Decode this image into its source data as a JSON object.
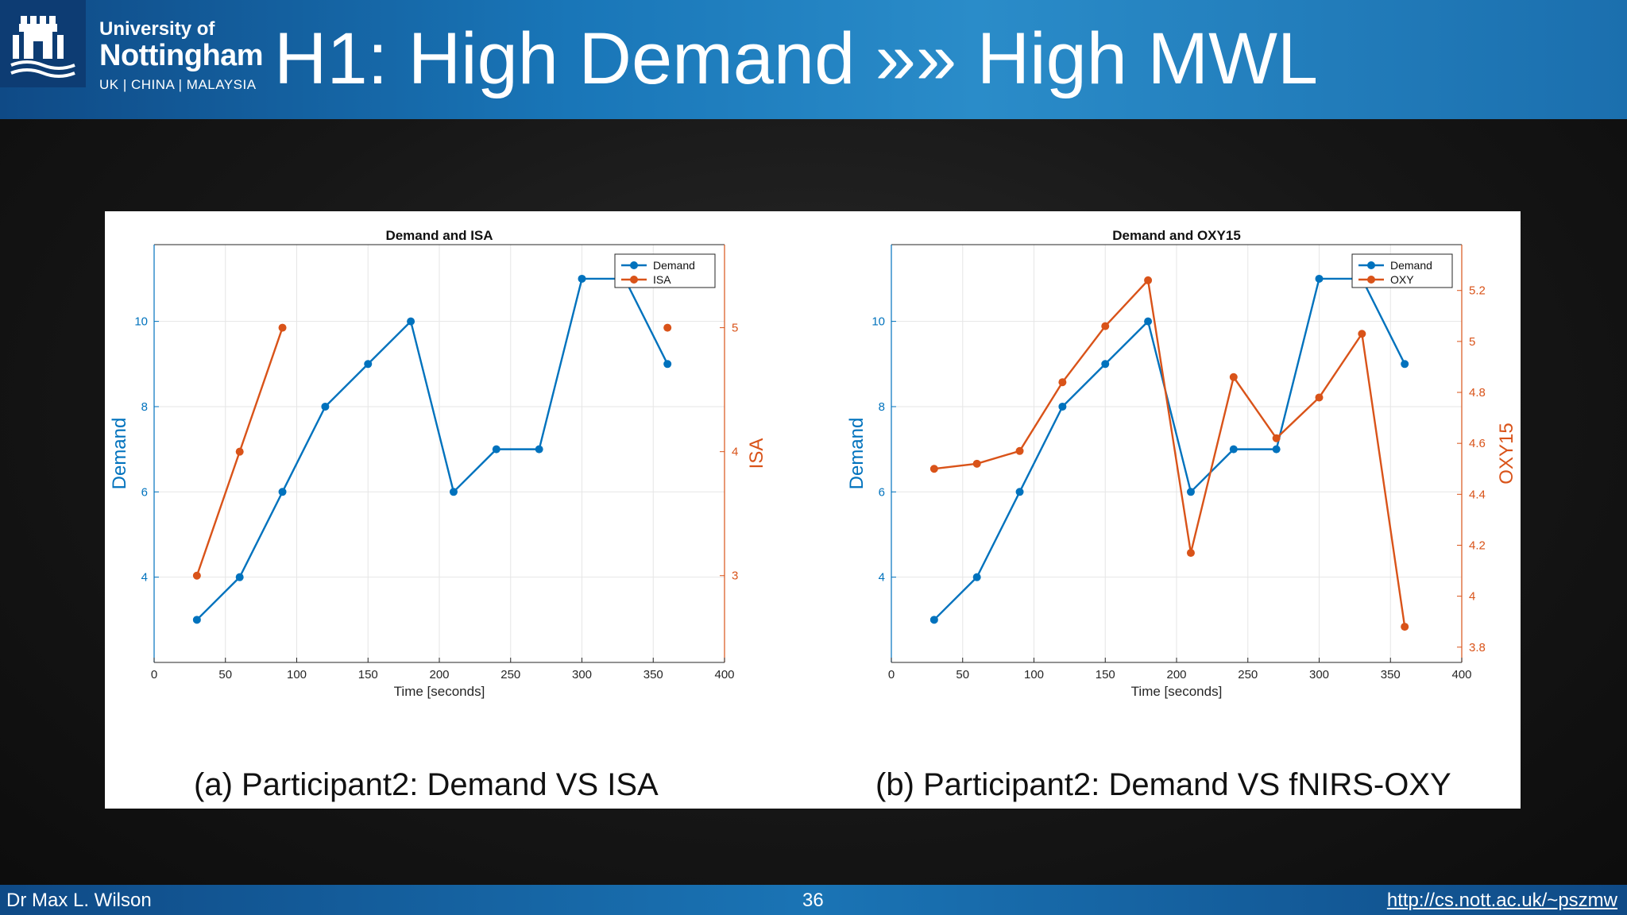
{
  "header": {
    "logo_line1": "University of",
    "logo_line2": "Nottingham",
    "logo_line3": "UK | CHINA | MALAYSIA",
    "title": "H1: High Demand »» High MWL"
  },
  "colors": {
    "demand": "#0072bd",
    "second": "#d95319"
  },
  "chart_data": [
    {
      "type": "line",
      "title": "Demand and ISA",
      "xlabel": "Time [seconds]",
      "xlim": [
        0,
        400
      ],
      "xticks": [
        0,
        50,
        100,
        150,
        200,
        250,
        300,
        350,
        400
      ],
      "y_left": {
        "label": "Demand",
        "lim": [
          2,
          11.8
        ],
        "ticks": [
          4,
          6,
          8,
          10
        ]
      },
      "y_right": {
        "label": "ISA",
        "lim": [
          2.3,
          5.67
        ],
        "ticks": [
          3,
          4,
          5
        ]
      },
      "grid": true,
      "legend": "top-right",
      "series": [
        {
          "name": "Demand",
          "axis": "left",
          "color": "#0072bd",
          "x": [
            30,
            60,
            90,
            120,
            150,
            180,
            210,
            240,
            270,
            300,
            330,
            360
          ],
          "y": [
            3,
            4,
            6,
            8,
            9,
            10,
            6,
            7,
            7,
            11,
            11,
            9
          ]
        },
        {
          "name": "ISA",
          "axis": "right",
          "color": "#d95319",
          "x": [
            30,
            60,
            90,
            360
          ],
          "y": [
            3,
            4,
            5,
            5
          ],
          "segments": [
            [
              0,
              2
            ],
            [
              3,
              3
            ]
          ]
        }
      ],
      "caption": "(a) Participant2: Demand VS ISA"
    },
    {
      "type": "line",
      "title": "Demand and OXY15",
      "xlabel": "Time [seconds]",
      "xlim": [
        0,
        400
      ],
      "xticks": [
        0,
        50,
        100,
        150,
        200,
        250,
        300,
        350,
        400
      ],
      "y_left": {
        "label": "Demand",
        "lim": [
          2,
          11.8
        ],
        "ticks": [
          4,
          6,
          8,
          10
        ]
      },
      "y_right": {
        "label": "OXY15",
        "lim": [
          3.74,
          5.38
        ],
        "ticks": [
          3.8,
          4,
          4.2,
          4.4,
          4.6,
          4.8,
          5,
          5.2
        ]
      },
      "grid": true,
      "legend": "top-right",
      "series": [
        {
          "name": "Demand",
          "axis": "left",
          "color": "#0072bd",
          "x": [
            30,
            60,
            90,
            120,
            150,
            180,
            210,
            240,
            270,
            300,
            330,
            360
          ],
          "y": [
            3,
            4,
            6,
            8,
            9,
            10,
            6,
            7,
            7,
            11,
            11,
            9
          ]
        },
        {
          "name": "OXY",
          "axis": "right",
          "color": "#d95319",
          "x": [
            30,
            60,
            90,
            120,
            150,
            180,
            210,
            240,
            270,
            300,
            330,
            360
          ],
          "y": [
            4.5,
            4.52,
            4.57,
            4.84,
            5.06,
            5.24,
            4.17,
            4.86,
            4.62,
            4.78,
            5.03,
            3.88
          ]
        }
      ],
      "caption": "(b) Participant2: Demand VS fNIRS-OXY"
    }
  ],
  "footer": {
    "author": "Dr Max L. Wilson",
    "page_number": "36",
    "url": "http://cs.nott.ac.uk/~pszmw"
  }
}
